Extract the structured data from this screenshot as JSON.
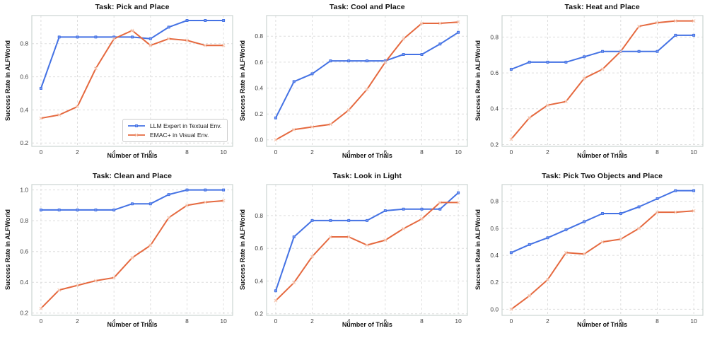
{
  "figure": {
    "background": "#ffffff",
    "xlabel": "Number of Trials",
    "ylabel": "Success Rate in ALFWorld",
    "x_ticks": [
      0,
      2,
      4,
      6,
      8,
      10
    ],
    "xlim": [
      -0.5,
      10.5
    ],
    "grid": "dashed, light gray, both axes",
    "grid_color": "#dedede",
    "spine_color": "#ccd4d2"
  },
  "series_styles": {
    "llm_expert": {
      "color": "#4472E4",
      "marker": "square",
      "marker_color": "#7d9cf0"
    },
    "emac": {
      "color": "#E5693F",
      "marker": "x",
      "marker_color": "#f6cab5"
    }
  },
  "legend": {
    "position": "lower right of first subplot",
    "items": [
      {
        "label": "LLM Expert in Textual Env.",
        "series": "llm_expert"
      },
      {
        "label": "EMAC+ in Visual Env.",
        "series": "emac"
      }
    ]
  },
  "chart_data": [
    {
      "type": "line",
      "title": "Task: Pick and Place",
      "xlabel": "Number of Trials",
      "ylabel": "Success Rate in ALFWorld",
      "x": [
        0,
        1,
        2,
        3,
        4,
        5,
        6,
        7,
        8,
        9,
        10
      ],
      "y_ticks": [
        0.2,
        0.4,
        0.6,
        0.8
      ],
      "ylim": [
        0.18,
        0.97
      ],
      "series": [
        {
          "name": "LLM Expert in Textual Env.",
          "key": "llm_expert",
          "values": [
            0.53,
            0.84,
            0.84,
            0.84,
            0.84,
            0.84,
            0.83,
            0.9,
            0.94,
            0.94,
            0.94
          ]
        },
        {
          "name": "EMAC+ in Visual Env.",
          "key": "emac",
          "values": [
            0.35,
            0.37,
            0.42,
            0.65,
            0.83,
            0.88,
            0.79,
            0.83,
            0.82,
            0.79,
            0.79
          ]
        }
      ]
    },
    {
      "type": "line",
      "title": "Task: Cool and Place",
      "xlabel": "Number of Trials",
      "ylabel": "Success Rate in ALFWorld",
      "x": [
        0,
        1,
        2,
        3,
        4,
        5,
        6,
        7,
        8,
        9,
        10
      ],
      "y_ticks": [
        0.0,
        0.2,
        0.4,
        0.6,
        0.8
      ],
      "ylim": [
        -0.05,
        0.96
      ],
      "series": [
        {
          "name": "LLM Expert in Textual Env.",
          "key": "llm_expert",
          "values": [
            0.17,
            0.45,
            0.51,
            0.61,
            0.61,
            0.61,
            0.61,
            0.66,
            0.66,
            0.74,
            0.83
          ]
        },
        {
          "name": "EMAC+ in Visual Env.",
          "key": "emac",
          "values": [
            0.0,
            0.08,
            0.1,
            0.12,
            0.23,
            0.39,
            0.6,
            0.78,
            0.9,
            0.9,
            0.91
          ]
        }
      ]
    },
    {
      "type": "line",
      "title": "Task: Heat and Place",
      "xlabel": "Number of Trials",
      "ylabel": "Success Rate in ALFWorld",
      "x": [
        0,
        1,
        2,
        3,
        4,
        5,
        6,
        7,
        8,
        9,
        10
      ],
      "y_ticks": [
        0.2,
        0.4,
        0.6,
        0.8
      ],
      "ylim": [
        0.19,
        0.92
      ],
      "series": [
        {
          "name": "LLM Expert in Textual Env.",
          "key": "llm_expert",
          "values": [
            0.62,
            0.66,
            0.66,
            0.66,
            0.69,
            0.72,
            0.72,
            0.72,
            0.72,
            0.81,
            0.81
          ]
        },
        {
          "name": "EMAC+ in Visual Env.",
          "key": "emac",
          "values": [
            0.23,
            0.35,
            0.42,
            0.44,
            0.57,
            0.62,
            0.72,
            0.86,
            0.88,
            0.89,
            0.89
          ]
        }
      ]
    },
    {
      "type": "line",
      "title": "Task: Clean and Place",
      "xlabel": "Number of Trials",
      "ylabel": "Success Rate in ALFWorld",
      "x": [
        0,
        1,
        2,
        3,
        4,
        5,
        6,
        7,
        8,
        9,
        10
      ],
      "y_ticks": [
        0.2,
        0.4,
        0.6,
        0.8,
        1.0
      ],
      "ylim": [
        0.185,
        1.035
      ],
      "series": [
        {
          "name": "LLM Expert in Textual Env.",
          "key": "llm_expert",
          "values": [
            0.87,
            0.87,
            0.87,
            0.87,
            0.87,
            0.91,
            0.91,
            0.97,
            1.0,
            1.0,
            1.0
          ]
        },
        {
          "name": "EMAC+ in Visual Env.",
          "key": "emac",
          "values": [
            0.23,
            0.35,
            0.38,
            0.41,
            0.43,
            0.56,
            0.64,
            0.82,
            0.9,
            0.92,
            0.93
          ]
        }
      ]
    },
    {
      "type": "line",
      "title": "Task: Look in Light",
      "xlabel": "Number of Trials",
      "ylabel": "Success Rate in ALFWorld",
      "x": [
        0,
        1,
        2,
        3,
        4,
        5,
        6,
        7,
        8,
        9,
        10
      ],
      "y_ticks": [
        0.2,
        0.4,
        0.6,
        0.8
      ],
      "ylim": [
        0.19,
        0.99
      ],
      "series": [
        {
          "name": "LLM Expert in Textual Env.",
          "key": "llm_expert",
          "values": [
            0.34,
            0.67,
            0.77,
            0.77,
            0.77,
            0.77,
            0.83,
            0.84,
            0.84,
            0.84,
            0.94
          ]
        },
        {
          "name": "EMAC+ in Visual Env.",
          "key": "emac",
          "values": [
            0.28,
            0.39,
            0.55,
            0.67,
            0.67,
            0.62,
            0.65,
            0.72,
            0.78,
            0.88,
            0.88
          ]
        }
      ]
    },
    {
      "type": "line",
      "title": "Task: Pick Two Objects and Place",
      "xlabel": "Number of Trials",
      "ylabel": "Success Rate in ALFWorld",
      "x": [
        0,
        1,
        2,
        3,
        4,
        5,
        6,
        7,
        8,
        9,
        10
      ],
      "y_ticks": [
        0.0,
        0.2,
        0.4,
        0.6,
        0.8
      ],
      "ylim": [
        -0.045,
        0.925
      ],
      "series": [
        {
          "name": "LLM Expert in Textual Env.",
          "key": "llm_expert",
          "values": [
            0.42,
            0.48,
            0.53,
            0.59,
            0.65,
            0.71,
            0.71,
            0.76,
            0.82,
            0.88,
            0.88
          ]
        },
        {
          "name": "EMAC+ in Visual Env.",
          "key": "emac",
          "values": [
            0.0,
            0.1,
            0.22,
            0.42,
            0.41,
            0.5,
            0.52,
            0.6,
            0.72,
            0.72,
            0.73
          ]
        }
      ]
    }
  ]
}
